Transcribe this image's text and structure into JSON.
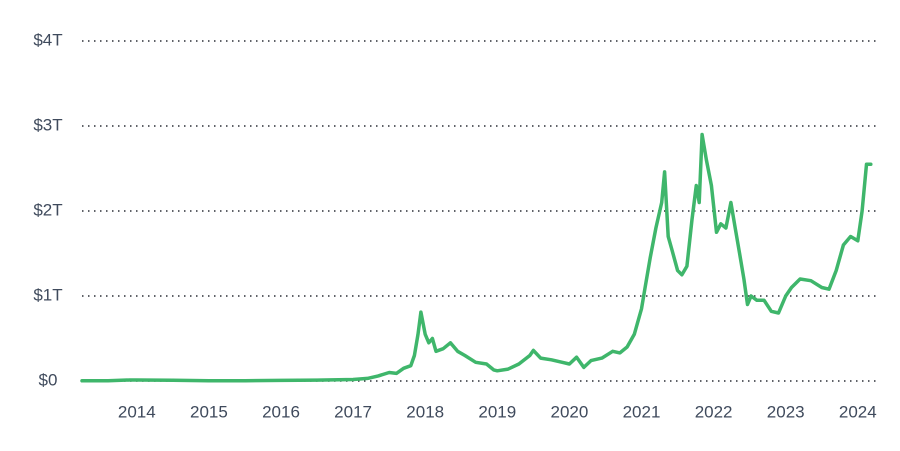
{
  "chart_data": {
    "type": "line",
    "x": [
      2013.24,
      2013.6,
      2013.9,
      2014.0,
      2014.5,
      2015.0,
      2015.5,
      2016.0,
      2016.5,
      2017.0,
      2017.2,
      2017.35,
      2017.5,
      2017.6,
      2017.7,
      2017.8,
      2017.85,
      2017.9,
      2017.94,
      2018.0,
      2018.05,
      2018.1,
      2018.15,
      2018.25,
      2018.35,
      2018.45,
      2018.55,
      2018.7,
      2018.85,
      2018.95,
      2019.0,
      2019.15,
      2019.3,
      2019.45,
      2019.5,
      2019.6,
      2019.75,
      2019.9,
      2020.0,
      2020.1,
      2020.2,
      2020.3,
      2020.45,
      2020.6,
      2020.7,
      2020.8,
      2020.9,
      2021.0,
      2021.05,
      2021.12,
      2021.2,
      2021.28,
      2021.32,
      2021.37,
      2021.42,
      2021.5,
      2021.56,
      2021.63,
      2021.7,
      2021.76,
      2021.8,
      2021.84,
      2021.9,
      2021.97,
      2022.04,
      2022.1,
      2022.17,
      2022.24,
      2022.3,
      2022.36,
      2022.42,
      2022.47,
      2022.52,
      2022.6,
      2022.7,
      2022.8,
      2022.9,
      2023.0,
      2023.08,
      2023.2,
      2023.35,
      2023.5,
      2023.6,
      2023.7,
      2023.8,
      2023.9,
      2024.0,
      2024.06,
      2024.12,
      2024.18
    ],
    "series": [
      {
        "color": "#3fb66b",
        "values": [
          0.002,
          0.003,
          0.012,
          0.012,
          0.008,
          0.004,
          0.004,
          0.007,
          0.01,
          0.018,
          0.03,
          0.06,
          0.1,
          0.09,
          0.15,
          0.18,
          0.3,
          0.55,
          0.81,
          0.55,
          0.45,
          0.5,
          0.35,
          0.38,
          0.45,
          0.35,
          0.3,
          0.22,
          0.2,
          0.13,
          0.12,
          0.14,
          0.2,
          0.3,
          0.36,
          0.27,
          0.25,
          0.22,
          0.2,
          0.28,
          0.16,
          0.24,
          0.27,
          0.35,
          0.33,
          0.4,
          0.55,
          0.85,
          1.1,
          1.45,
          1.8,
          2.1,
          2.46,
          1.7,
          1.55,
          1.3,
          1.25,
          1.35,
          1.9,
          2.3,
          2.1,
          2.9,
          2.6,
          2.3,
          1.75,
          1.85,
          1.8,
          2.1,
          1.8,
          1.5,
          1.2,
          0.9,
          1.0,
          0.95,
          0.95,
          0.82,
          0.8,
          1.0,
          1.1,
          1.2,
          1.18,
          1.1,
          1.08,
          1.3,
          1.6,
          1.7,
          1.65,
          2.0,
          2.55,
          2.55
        ]
      }
    ],
    "xlim": [
      2013.24,
      2024.28
    ],
    "xticks": [
      2014,
      2015,
      2016,
      2017,
      2018,
      2019,
      2020,
      2021,
      2022,
      2023,
      2024
    ],
    "ylim": [
      0,
      4
    ],
    "yticks": [
      {
        "value": 0,
        "label": "$0"
      },
      {
        "value": 1,
        "label": "$1T"
      },
      {
        "value": 2,
        "label": "$2T"
      },
      {
        "value": 3,
        "label": "$3T"
      },
      {
        "value": 4,
        "label": "$4T"
      }
    ],
    "grid": true
  }
}
